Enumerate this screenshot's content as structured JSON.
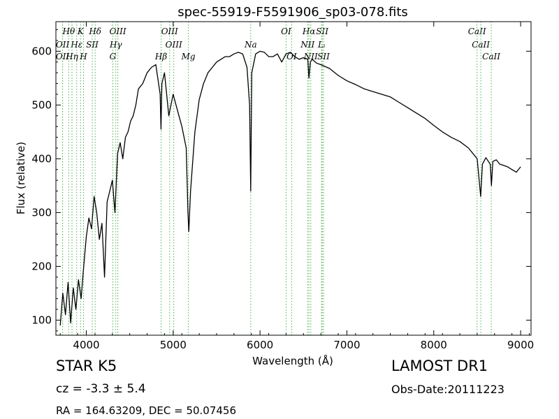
{
  "chart_data": {
    "type": "line",
    "title": "spec-55919-F5591906_sp03-078.fits",
    "xlabel": "Wavelength (Å)",
    "ylabel": "Flux (relative)",
    "xlim": [
      3650,
      9120
    ],
    "ylim": [
      72,
      655
    ],
    "x_ticks": [
      4000,
      5000,
      6000,
      7000,
      8000,
      9000
    ],
    "y_ticks": [
      100,
      200,
      300,
      400,
      500,
      600
    ],
    "grid": false,
    "line_color": "#000000",
    "marker_color": "#4caf50",
    "series": [
      {
        "x": [
          3700,
          3730,
          3760,
          3790,
          3820,
          3850,
          3880,
          3910,
          3940,
          3970,
          4000,
          4030,
          4060,
          4090,
          4120,
          4150,
          4180,
          4210,
          4240,
          4270,
          4300,
          4330,
          4360,
          4390,
          4420,
          4450,
          4480,
          4510,
          4540,
          4570,
          4600,
          4650,
          4700,
          4750,
          4800,
          4850,
          4860,
          4870,
          4900,
          4950,
          5000,
          5050,
          5100,
          5150,
          5170,
          5180,
          5200,
          5250,
          5300,
          5350,
          5400,
          5450,
          5500,
          5550,
          5600,
          5650,
          5700,
          5750,
          5800,
          5850,
          5880,
          5893,
          5905,
          5950,
          6000,
          6050,
          6100,
          6150,
          6200,
          6250,
          6300,
          6350,
          6400,
          6450,
          6500,
          6550,
          6563,
          6580,
          6600,
          6650,
          6700,
          6800,
          6900,
          7000,
          7100,
          7200,
          7300,
          7400,
          7500,
          7600,
          7700,
          7800,
          7900,
          8000,
          8100,
          8200,
          8300,
          8400,
          8450,
          8500,
          8540,
          8560,
          8600,
          8650,
          8664,
          8680,
          8720,
          8760,
          8800,
          8850,
          8900,
          8950,
          9000
        ],
        "y": [
          90,
          150,
          110,
          170,
          95,
          160,
          120,
          175,
          140,
          200,
          255,
          290,
          270,
          330,
          300,
          250,
          280,
          180,
          320,
          340,
          360,
          300,
          410,
          430,
          400,
          440,
          450,
          470,
          480,
          500,
          530,
          540,
          560,
          570,
          575,
          520,
          455,
          540,
          560,
          480,
          520,
          490,
          460,
          420,
          300,
          265,
          340,
          450,
          510,
          540,
          560,
          570,
          580,
          585,
          590,
          590,
          595,
          598,
          595,
          570,
          500,
          340,
          560,
          595,
          600,
          598,
          590,
          590,
          595,
          580,
          595,
          598,
          590,
          585,
          588,
          585,
          550,
          580,
          585,
          578,
          575,
          568,
          555,
          545,
          538,
          530,
          525,
          520,
          515,
          505,
          495,
          485,
          475,
          462,
          450,
          440,
          432,
          420,
          410,
          400,
          330,
          390,
          402,
          390,
          350,
          395,
          398,
          390,
          388,
          385,
          380,
          375,
          385
        ]
      }
    ],
    "spectral_lines": [
      {
        "label": "Hθ",
        "x": 3798,
        "row": 1
      },
      {
        "label": "K",
        "x": 3934,
        "row": 1
      },
      {
        "label": "Hδ",
        "x": 4102,
        "row": 1
      },
      {
        "label": "OIII",
        "x": 4363,
        "row": 1
      },
      {
        "label": "OIII",
        "x": 4959,
        "row": 1
      },
      {
        "label": "OI",
        "x": 6300,
        "row": 1
      },
      {
        "label": "Hα",
        "x": 6563,
        "row": 1
      },
      {
        "label": "SII",
        "x": 6716,
        "row": 1
      },
      {
        "label": "CaII",
        "x": 8498,
        "row": 1
      },
      {
        "label": "OII",
        "x": 3727,
        "row": 2
      },
      {
        "label": "Hε",
        "x": 3889,
        "row": 2
      },
      {
        "label": "SII",
        "x": 4068,
        "row": 2
      },
      {
        "label": "Hγ",
        "x": 4340,
        "row": 2
      },
      {
        "label": "OIII",
        "x": 5007,
        "row": 2
      },
      {
        "label": "NII",
        "x": 6548,
        "row": 2
      },
      {
        "label": "Lᵢ",
        "x": 6708,
        "row": 2
      },
      {
        "label": "CaII",
        "x": 8542,
        "row": 2
      },
      {
        "label": "OII",
        "x": 3727,
        "row": 3
      },
      {
        "label": "Hη",
        "x": 3835,
        "row": 3
      },
      {
        "label": "H",
        "x": 3968,
        "row": 3
      },
      {
        "label": "G",
        "x": 4305,
        "row": 3
      },
      {
        "label": "Hβ",
        "x": 4861,
        "row": 3
      },
      {
        "label": "Mg",
        "x": 5175,
        "row": 3
      },
      {
        "label": "Na",
        "x": 5893,
        "row": 2
      },
      {
        "label": "OI",
        "x": 6364,
        "row": 3
      },
      {
        "label": "NII",
        "x": 6584,
        "row": 3
      },
      {
        "label": "SII",
        "x": 6731,
        "row": 3
      },
      {
        "label": "CaII",
        "x": 8662,
        "row": 3
      }
    ]
  },
  "info": {
    "classification": "STAR   K5",
    "survey": "LAMOST DR1",
    "redshift": "cz = -3.3  ± 5.4",
    "obs_date": "Obs-Date:20111223",
    "coords": "RA = 164.63209, DEC = 50.07456"
  }
}
